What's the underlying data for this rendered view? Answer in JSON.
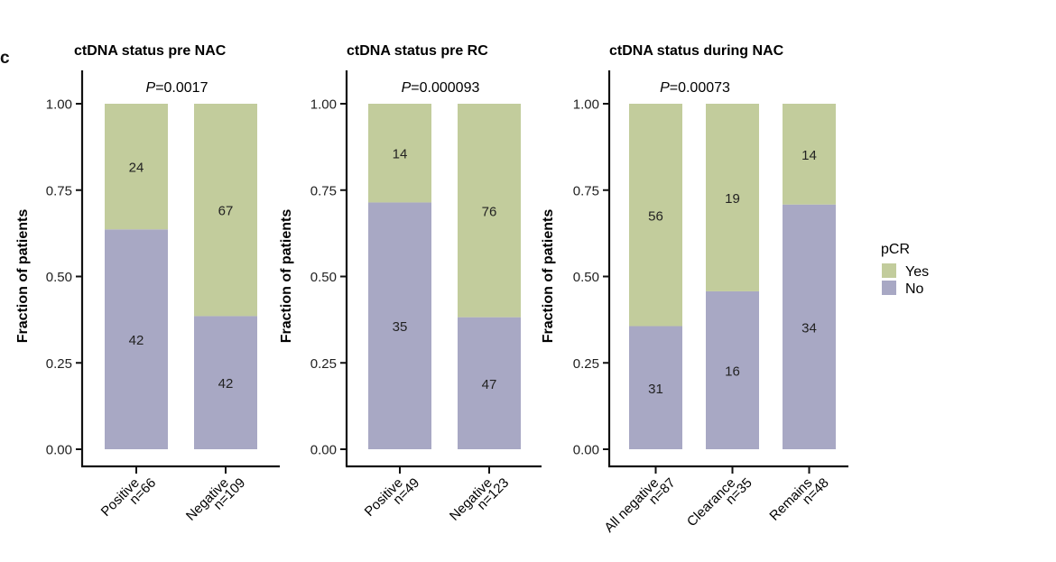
{
  "panel_letter": "c",
  "colors": {
    "yes": "#c2cc9c",
    "no": "#a8a8c4",
    "axis": "#111111"
  },
  "legend": {
    "title": "pCR",
    "items": [
      {
        "label": "Yes",
        "key": "yes"
      },
      {
        "label": "No",
        "key": "no"
      }
    ],
    "position": "right"
  },
  "chart_data": [
    {
      "type": "bar",
      "stacked": "fraction",
      "title": "ctDNA status pre NAC",
      "annotation": {
        "prefix": "P",
        "text": "=0.0017"
      },
      "ylabel": "Fraction of patients",
      "ylim": [
        0,
        1
      ],
      "yticks": [
        "0.00",
        "0.25",
        "0.50",
        "0.75",
        "1.00"
      ],
      "categories": [
        {
          "name": "Positive",
          "n": "n=66"
        },
        {
          "name": "Negative",
          "n": "n=109"
        }
      ],
      "series": [
        {
          "name": "No",
          "key": "no",
          "values": [
            42,
            42
          ]
        },
        {
          "name": "Yes",
          "key": "yes",
          "values": [
            24,
            67
          ]
        }
      ]
    },
    {
      "type": "bar",
      "stacked": "fraction",
      "title": "ctDNA status pre RC",
      "annotation": {
        "prefix": "P",
        "text": "=0.000093"
      },
      "ylabel": "Fraction of patients",
      "ylim": [
        0,
        1
      ],
      "yticks": [
        "0.00",
        "0.25",
        "0.50",
        "0.75",
        "1.00"
      ],
      "categories": [
        {
          "name": "Positive",
          "n": "n=49"
        },
        {
          "name": "Negative",
          "n": "n=123"
        }
      ],
      "series": [
        {
          "name": "No",
          "key": "no",
          "values": [
            35,
            47
          ]
        },
        {
          "name": "Yes",
          "key": "yes",
          "values": [
            14,
            76
          ]
        }
      ]
    },
    {
      "type": "bar",
      "stacked": "fraction",
      "title": "ctDNA status during NAC",
      "annotation": {
        "prefix": "P",
        "text": "=0.00073"
      },
      "ylabel": "Fraction of patients",
      "ylim": [
        0,
        1
      ],
      "yticks": [
        "0.00",
        "0.25",
        "0.50",
        "0.75",
        "1.00"
      ],
      "categories": [
        {
          "name": "All negative",
          "n": "n=87"
        },
        {
          "name": "Clearance",
          "n": "n=35"
        },
        {
          "name": "Remains",
          "n": "n=48"
        }
      ],
      "series": [
        {
          "name": "No",
          "key": "no",
          "values": [
            31,
            16,
            34
          ]
        },
        {
          "name": "Yes",
          "key": "yes",
          "values": [
            56,
            19,
            14
          ]
        }
      ]
    }
  ]
}
